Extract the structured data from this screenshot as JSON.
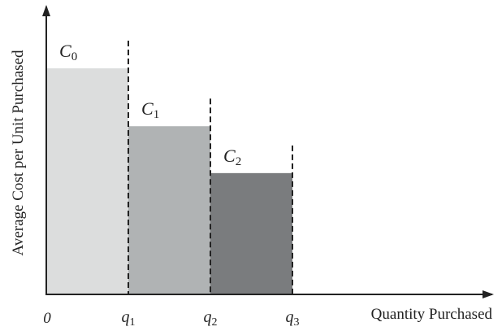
{
  "chart_data": {
    "type": "bar",
    "xlabel": "Quantity Purchased",
    "ylabel": "Average Cost per Unit Purchased",
    "origin_label": "0",
    "x_ticks": [
      {
        "base": "q",
        "sub": "1"
      },
      {
        "base": "q",
        "sub": "2"
      },
      {
        "base": "q",
        "sub": "3"
      }
    ],
    "bars": [
      {
        "base": "C",
        "sub": "0",
        "from": 0,
        "to": 1,
        "value": 0.82,
        "color": "#dcdddd"
      },
      {
        "base": "C",
        "sub": "1",
        "from": 1,
        "to": 2,
        "value": 0.61,
        "color": "#b0b3b4"
      },
      {
        "base": "C",
        "sub": "2",
        "from": 2,
        "to": 3,
        "value": 0.44,
        "color": "#7a7c7e"
      }
    ],
    "grid": false,
    "legend": "none"
  }
}
